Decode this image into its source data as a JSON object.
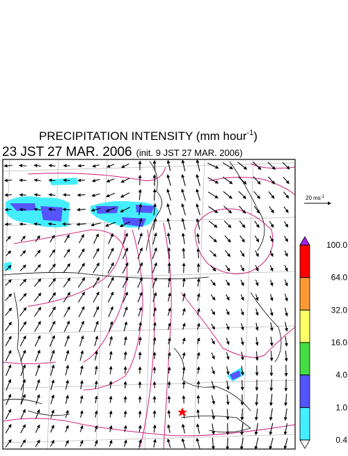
{
  "title": {
    "text": "PRECIPITATION INTENSITY (mm hour",
    "sup": "-1",
    "close": ")"
  },
  "time": "23 JST 27 MAR. 2006",
  "init": "(init. 9 JST 27 MAR. 2006)",
  "scale": {
    "text": "20 ms",
    "sup": "-1"
  },
  "colorbar": {
    "colors": [
      "#a020f0",
      "#ff0000",
      "#ff9933",
      "#ffff66",
      "#44dd44",
      "#5555ff",
      "#44eeff",
      "#ffffff"
    ],
    "ticks": [
      {
        "value": 100,
        "label": "100.0"
      },
      {
        "value": 64,
        "label": "64.0"
      },
      {
        "value": 32,
        "label": "32.0"
      },
      {
        "value": 16,
        "label": "16.0"
      },
      {
        "value": 4,
        "label": "4.0"
      },
      {
        "value": 1,
        "label": "1.0"
      },
      {
        "value": 0.4,
        "label": "0.4"
      }
    ]
  }
}
